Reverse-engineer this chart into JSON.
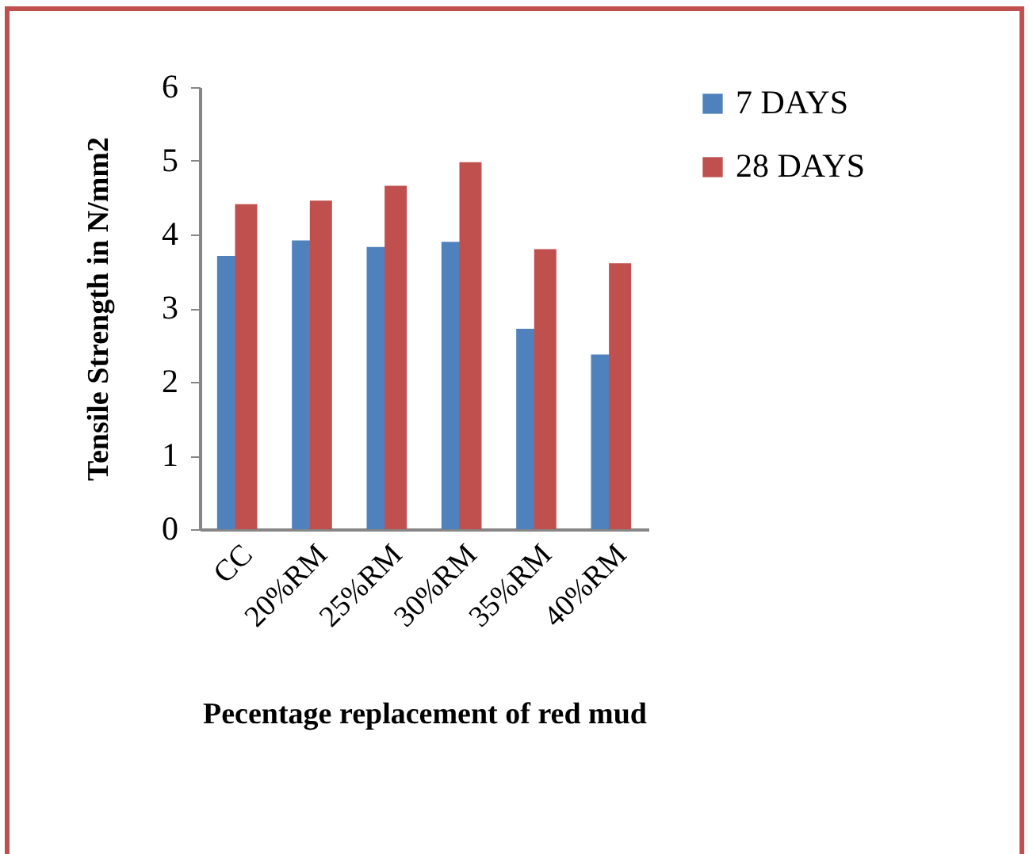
{
  "chart_data": {
    "type": "bar",
    "xlabel": "Pecentage replacement of red mud",
    "ylabel": "Tensile Strength in N/mm2",
    "categories": [
      "CC",
      "20%RM",
      "25%RM",
      "30%RM",
      "35%RM",
      "40%RM"
    ],
    "series": [
      {
        "name": "7 DAYS",
        "color": "#4f81bd",
        "values": [
          3.71,
          3.92,
          3.83,
          3.9,
          2.72,
          2.37
        ]
      },
      {
        "name": "28 DAYS",
        "color": "#c0504d",
        "values": [
          4.41,
          4.46,
          4.66,
          4.98,
          3.8,
          3.61
        ]
      }
    ],
    "ylim": [
      0,
      6
    ],
    "yticks": [
      0,
      1,
      2,
      3,
      4,
      5,
      6
    ],
    "grid": false,
    "legend": "right"
  }
}
